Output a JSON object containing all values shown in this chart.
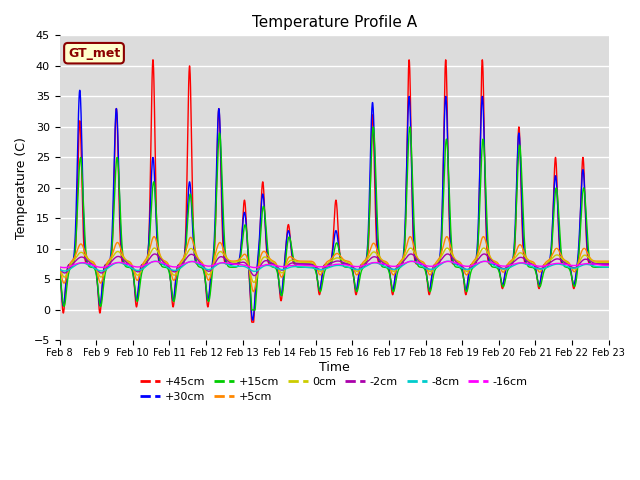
{
  "title": "Temperature Profile A",
  "xlabel": "Time",
  "ylabel": "Temperature (C)",
  "ylim": [
    -5,
    45
  ],
  "xlim": [
    0,
    15
  ],
  "bg_color": "#dcdcdc",
  "annotation_text": "GT_met",
  "annotation_color": "#8B0000",
  "annotation_bg": "#FFFFCC",
  "x_tick_labels": [
    "Feb 8",
    "Feb 9",
    "Feb 10",
    "Feb 11",
    "Feb 12",
    "Feb 13",
    "Feb 14",
    "Feb 15",
    "Feb 16",
    "Feb 17",
    "Feb 18",
    "Feb 19",
    "Feb 20",
    "Feb 21",
    "Feb 22",
    "Feb 23"
  ],
  "series": {
    "+45cm": {
      "color": "#FF0000",
      "lw": 1.0
    },
    "+30cm": {
      "color": "#0000FF",
      "lw": 1.0
    },
    "+15cm": {
      "color": "#00CC00",
      "lw": 1.0
    },
    "+5cm": {
      "color": "#FF8800",
      "lw": 1.0
    },
    "0cm": {
      "color": "#CCCC00",
      "lw": 1.0
    },
    "-2cm": {
      "color": "#AA00AA",
      "lw": 1.0
    },
    "-8cm": {
      "color": "#00CCCC",
      "lw": 1.0
    },
    "-16cm": {
      "color": "#FF00FF",
      "lw": 1.0
    }
  },
  "yticks": [
    -5,
    0,
    5,
    10,
    15,
    20,
    25,
    30,
    35,
    40,
    45
  ],
  "spike_centers": [
    0.55,
    1.55,
    2.55,
    3.55,
    4.35,
    5.05,
    5.55,
    6.25,
    7.55,
    8.55,
    9.55,
    10.55,
    11.55,
    12.55,
    13.55,
    14.3
  ],
  "spike_h45": [
    31,
    33,
    41,
    40,
    33,
    18,
    21,
    14,
    18,
    32,
    41,
    41,
    41,
    30,
    25,
    25
  ],
  "spike_h30": [
    36,
    33,
    25,
    21,
    33,
    16,
    19,
    13,
    13,
    34,
    35,
    35,
    35,
    29,
    22,
    23
  ],
  "spike_h15": [
    25,
    25,
    21,
    19,
    29,
    14,
    17,
    12,
    11,
    30,
    30,
    28,
    28,
    27,
    20,
    20
  ],
  "night_centers": [
    0.1,
    1.1,
    2.1,
    3.1,
    4.05,
    5.25,
    5.3,
    6.05,
    7.1,
    8.1,
    9.1,
    10.1,
    11.1,
    12.1,
    13.1,
    14.05
  ],
  "night_dip": [
    8,
    8,
    7,
    7,
    7,
    6,
    6,
    6,
    5,
    5,
    5,
    5,
    5,
    4,
    4,
    4
  ],
  "base_deep": 7.5,
  "base_mid": 8.0
}
